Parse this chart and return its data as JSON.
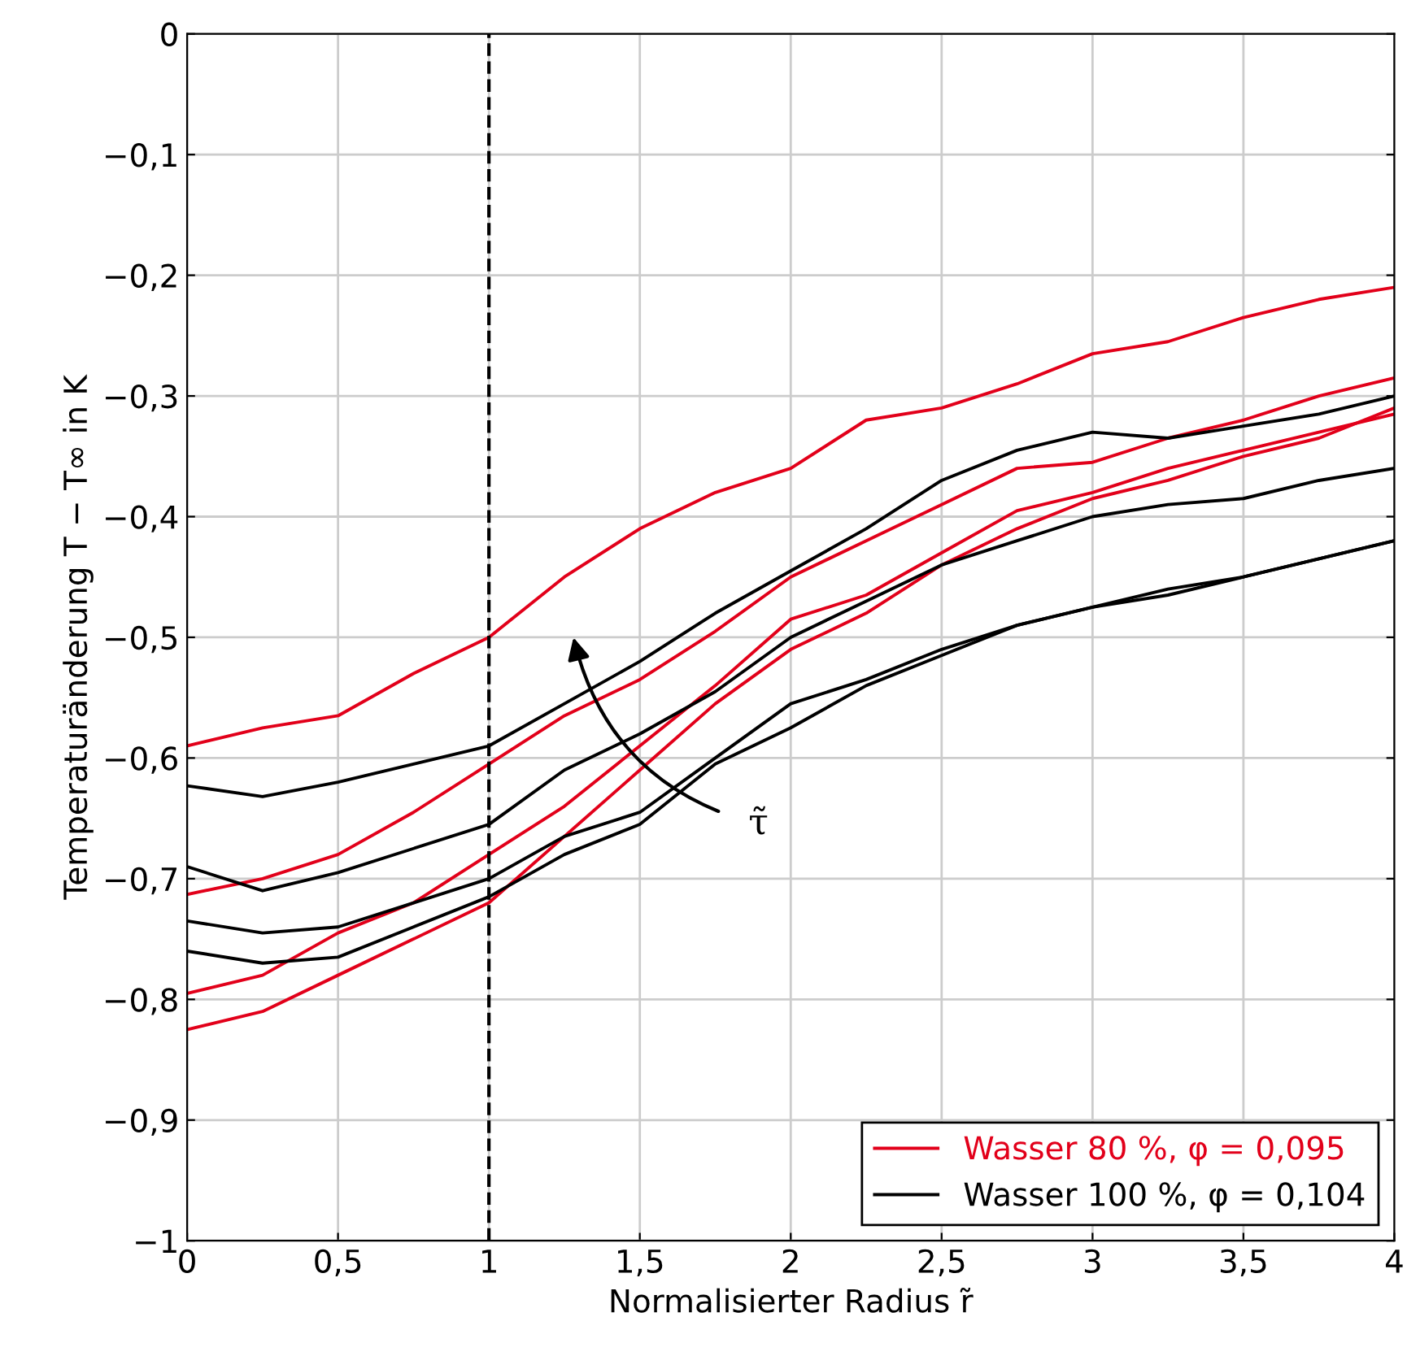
{
  "chart_data": {
    "type": "line",
    "xlabel": "Normalisierter Radius r̃",
    "ylabel": "Temperaturänderung T − T∞ in K",
    "x": [
      0,
      0.25,
      0.5,
      0.75,
      1,
      1.25,
      1.5,
      1.75,
      2,
      2.25,
      2.5,
      2.75,
      3,
      3.25,
      3.5,
      3.75,
      4
    ],
    "series": [
      {
        "name": "Wasser 80 %, φ = 0,095",
        "color": "#e2001a",
        "values": [
          -0.59,
          -0.575,
          -0.565,
          -0.53,
          -0.5,
          -0.45,
          -0.41,
          -0.38,
          -0.36,
          -0.32,
          -0.31,
          -0.29,
          -0.265,
          -0.255,
          -0.235,
          -0.22,
          -0.21
        ]
      },
      {
        "color": "#e2001a",
        "values": [
          -0.713,
          -0.7,
          -0.68,
          -0.645,
          -0.605,
          -0.565,
          -0.535,
          -0.495,
          -0.45,
          -0.42,
          -0.39,
          -0.36,
          -0.355,
          -0.335,
          -0.32,
          -0.3,
          -0.285
        ]
      },
      {
        "color": "#e2001a",
        "values": [
          -0.795,
          -0.78,
          -0.745,
          -0.72,
          -0.68,
          -0.64,
          -0.59,
          -0.54,
          -0.485,
          -0.465,
          -0.43,
          -0.395,
          -0.38,
          -0.36,
          -0.345,
          -0.33,
          -0.315
        ]
      },
      {
        "color": "#e2001a",
        "values": [
          -0.825,
          -0.81,
          -0.78,
          -0.75,
          -0.72,
          -0.665,
          -0.61,
          -0.555,
          -0.51,
          -0.48,
          -0.44,
          -0.41,
          -0.385,
          -0.37,
          -0.35,
          -0.335,
          -0.31
        ]
      },
      {
        "name": "Wasser 100 %, φ = 0,104",
        "color": "#000000",
        "values": [
          -0.623,
          -0.632,
          -0.62,
          -0.605,
          -0.59,
          -0.555,
          -0.52,
          -0.48,
          -0.445,
          -0.41,
          -0.37,
          -0.345,
          -0.33,
          -0.335,
          -0.325,
          -0.315,
          -0.3
        ]
      },
      {
        "color": "#000000",
        "values": [
          -0.69,
          -0.71,
          -0.695,
          -0.675,
          -0.655,
          -0.61,
          -0.58,
          -0.545,
          -0.5,
          -0.47,
          -0.44,
          -0.42,
          -0.4,
          -0.39,
          -0.385,
          -0.37,
          -0.36
        ]
      },
      {
        "color": "#000000",
        "values": [
          -0.735,
          -0.745,
          -0.74,
          -0.72,
          -0.7,
          -0.665,
          -0.645,
          -0.6,
          -0.555,
          -0.535,
          -0.51,
          -0.49,
          -0.475,
          -0.46,
          -0.45,
          -0.435,
          -0.42
        ]
      },
      {
        "color": "#000000",
        "values": [
          -0.76,
          -0.77,
          -0.765,
          -0.74,
          -0.715,
          -0.68,
          -0.655,
          -0.605,
          -0.575,
          -0.54,
          -0.515,
          -0.49,
          -0.475,
          -0.465,
          -0.45,
          -0.435,
          -0.42
        ]
      }
    ],
    "xlim": [
      0,
      4
    ],
    "ylim": [
      -1,
      0
    ],
    "xticks": [
      0,
      {
        "value": 0.5,
        "label": "0,5"
      },
      1,
      {
        "value": 1.5,
        "label": "1,5"
      },
      2,
      {
        "value": 2.5,
        "label": "2,5"
      },
      3,
      {
        "value": 3.5,
        "label": "3,5"
      },
      4
    ],
    "yticks": [
      {
        "value": -1,
        "label": "−1"
      },
      {
        "value": -0.9,
        "label": "−0,9"
      },
      {
        "value": -0.8,
        "label": "−0,8"
      },
      {
        "value": -0.7,
        "label": "−0,7"
      },
      {
        "value": -0.6,
        "label": "−0,6"
      },
      {
        "value": -0.5,
        "label": "−0,5"
      },
      {
        "value": -0.4,
        "label": "−0,4"
      },
      {
        "value": -0.3,
        "label": "−0,3"
      },
      {
        "value": -0.2,
        "label": "−0,2"
      },
      {
        "value": -0.1,
        "label": "−0,1"
      },
      0
    ],
    "ref_lines": [
      {
        "axis": "x",
        "value": 1,
        "color": "#000000",
        "line_style": "dashed"
      }
    ],
    "annotations": [
      "τ̃"
    ],
    "grid": true,
    "legend": "bottom right",
    "line_style": "solid"
  }
}
